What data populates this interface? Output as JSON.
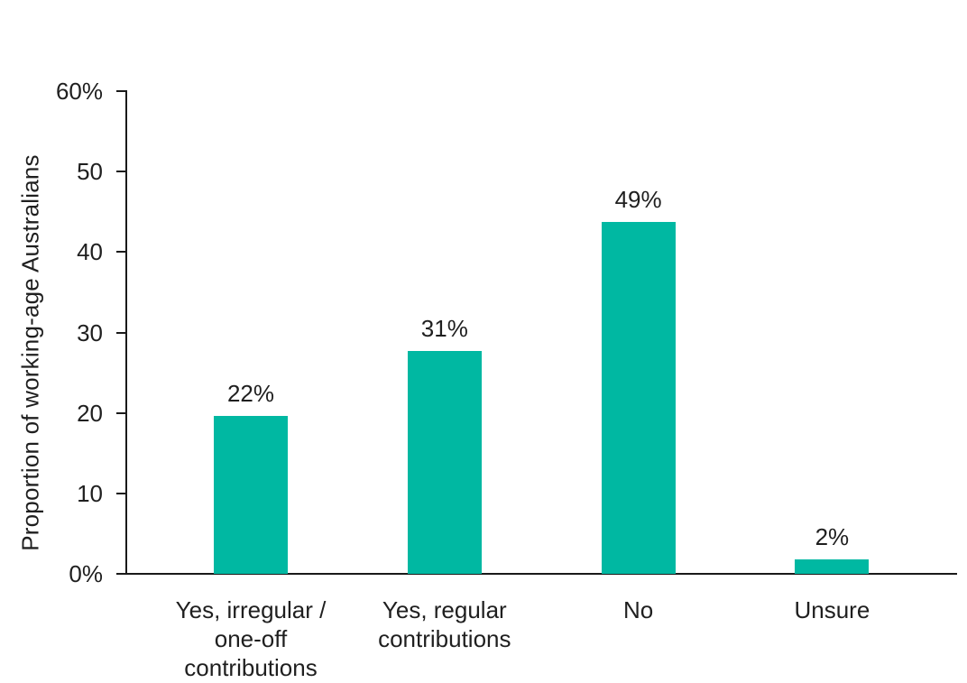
{
  "chart_data": {
    "type": "bar",
    "title": "",
    "xlabel": "",
    "ylabel": "Proportion of working-age Australians",
    "ylim": [
      0,
      60
    ],
    "grid": false,
    "legend": null,
    "colors": {
      "bar": "#00b8a2",
      "axis": "#1a1a1a",
      "text": "#1f1f1f",
      "background": "#ffffff"
    },
    "y_ticks": [
      {
        "value": 60,
        "label": "60%"
      },
      {
        "value": 50,
        "label": "50"
      },
      {
        "value": 40,
        "label": "40"
      },
      {
        "value": 30,
        "label": "30"
      },
      {
        "value": 20,
        "label": "20"
      },
      {
        "value": 10,
        "label": "10"
      },
      {
        "value": 0,
        "label": "0%"
      }
    ],
    "categories": [
      "Yes, irregular / one-off contributions",
      "Yes, regular contributions",
      "No",
      "Unsure"
    ],
    "bars": [
      {
        "category_lines": [
          "Yes, irregular /",
          "one-off",
          "contributions"
        ],
        "value": 22,
        "data_label": "22%",
        "drawn_value": 19.6
      },
      {
        "category_lines": [
          "Yes, regular",
          "contributions"
        ],
        "value": 31,
        "data_label": "31%",
        "drawn_value": 27.7
      },
      {
        "category_lines": [
          "No"
        ],
        "value": 49,
        "data_label": "49%",
        "drawn_value": 43.7
      },
      {
        "category_lines": [
          "Unsure"
        ],
        "value": 2,
        "data_label": "2%",
        "drawn_value": 1.75
      }
    ]
  }
}
